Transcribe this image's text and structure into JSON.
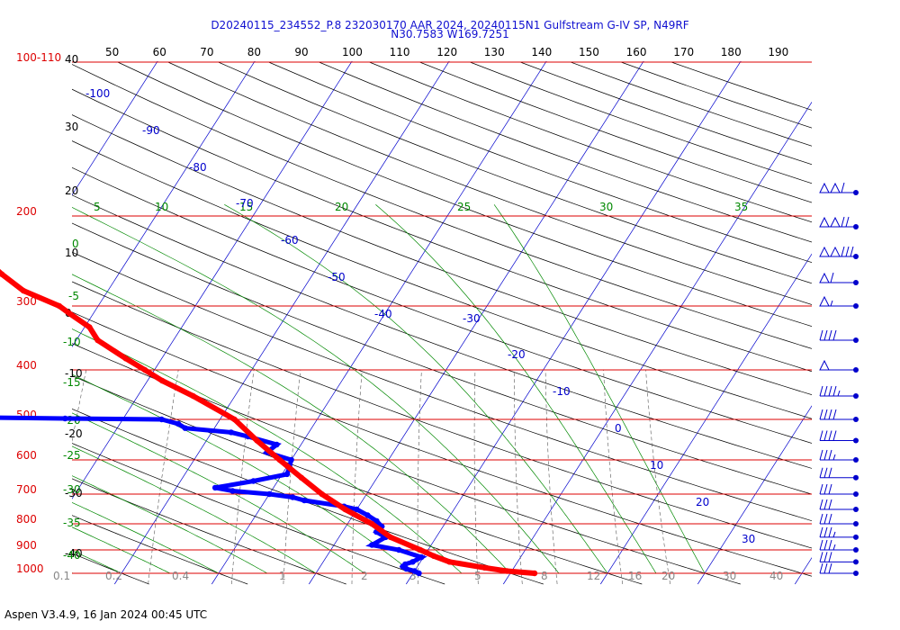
{
  "header": {
    "title_line1": "D20240115_234552_P.8 232030170 AAR 2024, 20240115N1 Gulfstream G-IV SP, N49RF",
    "title_line2": "N30.7583 W169.7251"
  },
  "footer": {
    "version_text": "Aspen V3.4.9, 16 Jan 2024  00:45 UTC"
  },
  "colors": {
    "isobar": "#dd0000",
    "isotherm": "#0000cc",
    "dry_adiabat": "#000000",
    "moist_adiabat": "#008800",
    "mixing_ratio": "#555555",
    "temperature_trace": "#ff0000",
    "dewpoint_trace": "#0000ff",
    "wind_barb": "#0000cc"
  },
  "chart_data": {
    "type": "skew-t log-p",
    "pressure_range_mb": [
      1000,
      100
    ],
    "pressure_labels": [
      "100-110",
      "200",
      "300",
      "400",
      "500",
      "600",
      "700",
      "800",
      "900",
      "1000"
    ],
    "top_axis_labels": [
      "50",
      "60",
      "70",
      "80",
      "90",
      "100",
      "110",
      "120",
      "130",
      "140",
      "150",
      "160",
      "170",
      "180",
      "190"
    ],
    "left_altitude_labels": [
      "40",
      "30",
      "20",
      "10",
      "0",
      "-10",
      "-20",
      "-30",
      "-40"
    ],
    "mixing_ratio_labels": [
      "0.1",
      "0.2",
      "0.4",
      "1",
      "2",
      "3",
      "5",
      "8",
      "12",
      "16",
      "20",
      "30",
      "40"
    ],
    "moist_adiabat_labels": [
      "5",
      "10",
      "15",
      "20",
      "25",
      "30",
      "35",
      "0",
      "-5",
      "-10",
      "-15",
      "-20",
      "-25",
      "-30",
      "-35",
      "-40"
    ],
    "isotherm_labels": [
      "-100",
      "-90",
      "-80",
      "-70",
      "-60",
      "-50",
      "-40",
      "-30",
      "-20",
      "-10",
      "0",
      "10",
      "20",
      "30"
    ],
    "temperature_profile": [
      [
        1000,
        22.5
      ],
      [
        990,
        19.5
      ],
      [
        975,
        17
      ],
      [
        950,
        13
      ],
      [
        925,
        11
      ],
      [
        900,
        9.2
      ],
      [
        850,
        5.3
      ],
      [
        800,
        2.5
      ],
      [
        750,
        -1.2
      ],
      [
        700,
        -4.6
      ],
      [
        650,
        -7.8
      ],
      [
        600,
        -11.2
      ],
      [
        550,
        -14.8
      ],
      [
        500,
        -18.5
      ],
      [
        450,
        -24.3
      ],
      [
        420,
        -28.5
      ],
      [
        400,
        -31
      ],
      [
        380,
        -33.7
      ],
      [
        350,
        -37.8
      ],
      [
        330,
        -39.5
      ],
      [
        310,
        -42.5
      ],
      [
        300,
        -44
      ],
      [
        280,
        -48.7
      ],
      [
        260,
        -52
      ],
      [
        250,
        -53.6
      ],
      [
        240,
        -55
      ],
      [
        230,
        -55.8
      ],
      [
        220,
        -56.6
      ],
      [
        210,
        -58.4
      ]
    ],
    "dewpoint_profile": [
      [
        1000,
        10.6
      ],
      [
        990,
        10
      ],
      [
        980,
        9
      ],
      [
        970,
        8.5
      ],
      [
        960,
        8.6
      ],
      [
        950,
        9.2
      ],
      [
        930,
        9.8
      ],
      [
        900,
        7
      ],
      [
        880,
        3.9
      ],
      [
        850,
        4.8
      ],
      [
        830,
        3.5
      ],
      [
        810,
        3.7
      ],
      [
        790,
        2.8
      ],
      [
        770,
        1.5
      ],
      [
        750,
        0
      ],
      [
        740,
        -1.5
      ],
      [
        720,
        -6
      ],
      [
        710,
        -7.4
      ],
      [
        700,
        -10
      ],
      [
        690,
        -14
      ],
      [
        680,
        -16
      ],
      [
        660,
        -12.5
      ],
      [
        640,
        -9.5
      ],
      [
        620,
        -9.7
      ],
      [
        600,
        -10
      ],
      [
        580,
        -13
      ],
      [
        560,
        -12.5
      ],
      [
        540,
        -16
      ],
      [
        530,
        -18
      ],
      [
        520,
        -23
      ],
      [
        510,
        -24
      ],
      [
        500,
        -26
      ],
      [
        498,
        -36
      ],
      [
        496,
        -44
      ],
      [
        494,
        -46
      ],
      [
        492,
        -58
      ],
      [
        490,
        -68
      ],
      [
        488,
        -80
      ],
      [
        486,
        -88
      ],
      [
        470,
        -88.4
      ],
      [
        450,
        -86.5
      ],
      [
        430,
        -82.5
      ],
      [
        420,
        -83
      ],
      [
        410,
        -84
      ],
      [
        400,
        -81.3
      ],
      [
        390,
        -80.8
      ],
      [
        380,
        -79.6
      ],
      [
        370,
        -78.8
      ],
      [
        350,
        -75.5
      ],
      [
        330,
        -73
      ],
      [
        300,
        -71
      ],
      [
        290,
        -70.4
      ],
      [
        270,
        -69
      ],
      [
        260,
        -67
      ],
      [
        250,
        -65.5
      ],
      [
        240,
        -63.8
      ],
      [
        230,
        -62.2
      ],
      [
        225,
        -61.2
      ]
    ],
    "winds_mb_dir_kt": [
      [
        1000,
        270,
        30
      ],
      [
        950,
        275,
        30
      ],
      [
        900,
        280,
        35
      ],
      [
        850,
        290,
        35
      ],
      [
        800,
        300,
        30
      ],
      [
        750,
        300,
        30
      ],
      [
        700,
        290,
        30
      ],
      [
        650,
        280,
        30
      ],
      [
        600,
        280,
        35
      ],
      [
        550,
        255,
        40
      ],
      [
        500,
        250,
        40
      ],
      [
        450,
        250,
        45
      ],
      [
        400,
        245,
        50
      ],
      [
        350,
        250,
        40
      ],
      [
        300,
        270,
        55
      ],
      [
        270,
        270,
        60
      ],
      [
        240,
        270,
        130
      ],
      [
        210,
        270,
        120
      ],
      [
        180,
        270,
        110
      ]
    ]
  }
}
